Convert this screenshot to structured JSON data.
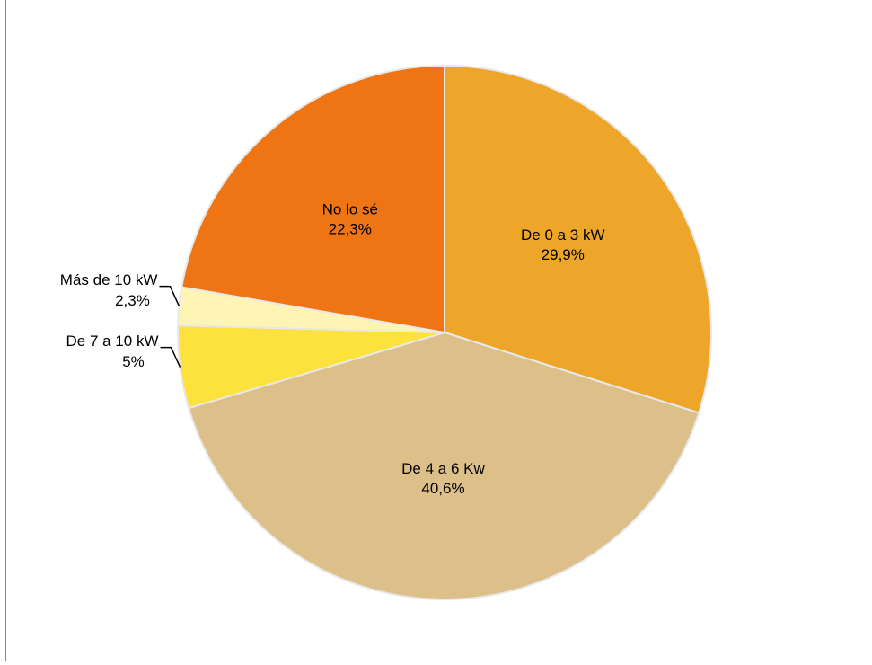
{
  "chart_data": {
    "type": "pie",
    "categories": [
      "De 0 a 3 kW",
      "De 4 a 6 Kw",
      "De 7 a 10 kW",
      "Más de 10 kW",
      "No lo sé"
    ],
    "values": [
      29.9,
      40.6,
      5,
      2.3,
      22.3
    ],
    "value_labels": [
      "29,9%",
      "40,6%",
      "5%",
      "2,3%",
      "22,3%"
    ],
    "colors": [
      "#eea62a",
      "#ddbf8a",
      "#fde23e",
      "#fef4b4",
      "#ee7414"
    ]
  }
}
